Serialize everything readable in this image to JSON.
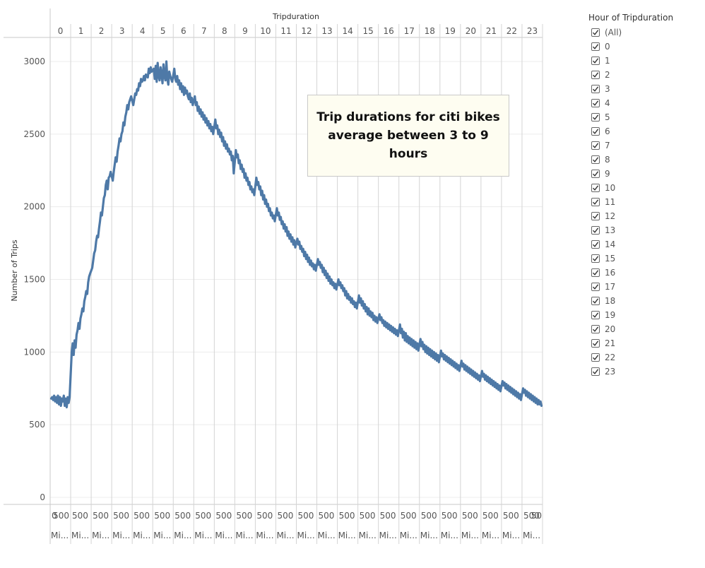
{
  "chart_data": {
    "type": "line",
    "title": "",
    "top_axis_title": "Tripduration",
    "ylabel": "Number of Trips",
    "ylim": [
      0,
      3000
    ],
    "yticks": [
      0,
      500,
      1000,
      1500,
      2000,
      2500,
      3000
    ],
    "grid": true,
    "line_color": "#4e79a7",
    "panels": [
      "0",
      "1",
      "2",
      "3",
      "4",
      "5",
      "6",
      "7",
      "8",
      "9",
      "10",
      "11",
      "12",
      "13",
      "14",
      "15",
      "16",
      "17",
      "18",
      "19",
      "20",
      "21",
      "22",
      "23"
    ],
    "bottom_tick_label": "500",
    "first_bottom_tick_label": "0",
    "last_bottom_tick_label": "50",
    "bottom_row_label": "Mi...",
    "series": [
      {
        "panel_values": [
          [
            680,
            690,
            670,
            700,
            660,
            690,
            650,
            700,
            640,
            690,
            630,
            680,
            660,
            700,
            630,
            680,
            620,
            690,
            650,
            690
          ],
          [
            1000,
            1060,
            980,
            1080,
            1030,
            1120,
            1150,
            1200,
            1160,
            1230,
            1260,
            1300,
            1280,
            1350,
            1380,
            1420,
            1400,
            1480,
            1520,
            1540
          ],
          [
            1580,
            1630,
            1680,
            1700,
            1760,
            1800,
            1790,
            1850,
            1900,
            1960,
            1940,
            2000,
            2060,
            2080,
            2150,
            2180,
            2120,
            2200,
            2210,
            2240
          ],
          [
            2180,
            2240,
            2290,
            2340,
            2310,
            2380,
            2420,
            2470,
            2450,
            2500,
            2520,
            2580,
            2560,
            2620,
            2650,
            2700,
            2670,
            2720,
            2740,
            2760
          ],
          [
            2700,
            2740,
            2780,
            2770,
            2810,
            2800,
            2850,
            2830,
            2880,
            2860,
            2870,
            2900,
            2870,
            2910,
            2900,
            2890,
            2950,
            2920,
            2960,
            2930
          ],
          [
            2950,
            2880,
            2970,
            2860,
            2990,
            2900,
            2870,
            2960,
            2910,
            2850,
            2980,
            2900,
            2870,
            3000,
            2880,
            2840,
            2930,
            2900,
            2880,
            2860
          ],
          [
            2950,
            2880,
            2860,
            2900,
            2840,
            2870,
            2810,
            2850,
            2790,
            2830,
            2770,
            2820,
            2780,
            2800,
            2760,
            2740,
            2780,
            2720,
            2750,
            2700
          ],
          [
            2760,
            2700,
            2720,
            2660,
            2690,
            2640,
            2670,
            2620,
            2650,
            2600,
            2630,
            2580,
            2610,
            2560,
            2590,
            2540,
            2570,
            2520,
            2550,
            2500
          ],
          [
            2600,
            2540,
            2560,
            2500,
            2530,
            2480,
            2510,
            2450,
            2480,
            2420,
            2450,
            2400,
            2430,
            2380,
            2400,
            2360,
            2380,
            2320,
            2350,
            2230
          ],
          [
            2390,
            2340,
            2360,
            2300,
            2320,
            2260,
            2290,
            2240,
            2260,
            2200,
            2230,
            2180,
            2200,
            2150,
            2170,
            2120,
            2140,
            2100,
            2120,
            2080
          ],
          [
            2200,
            2150,
            2170,
            2120,
            2140,
            2080,
            2110,
            2050,
            2080,
            2020,
            2050,
            2000,
            2020,
            1970,
            1990,
            1940,
            1960,
            1920,
            1940,
            1900
          ],
          [
            1990,
            1940,
            1960,
            1910,
            1930,
            1880,
            1900,
            1850,
            1880,
            1830,
            1860,
            1800,
            1830,
            1780,
            1810,
            1760,
            1790,
            1740,
            1770,
            1720
          ],
          [
            1780,
            1740,
            1760,
            1710,
            1730,
            1690,
            1710,
            1660,
            1690,
            1640,
            1670,
            1620,
            1650,
            1600,
            1630,
            1590,
            1610,
            1570,
            1600,
            1560
          ],
          [
            1640,
            1600,
            1620,
            1580,
            1600,
            1550,
            1580,
            1530,
            1560,
            1510,
            1540,
            1490,
            1520,
            1470,
            1500,
            1460,
            1480,
            1440,
            1470,
            1430
          ],
          [
            1500,
            1460,
            1480,
            1440,
            1460,
            1420,
            1440,
            1390,
            1420,
            1370,
            1400,
            1360,
            1380,
            1340,
            1370,
            1330,
            1350,
            1310,
            1340,
            1300
          ],
          [
            1390,
            1340,
            1370,
            1320,
            1350,
            1300,
            1330,
            1280,
            1310,
            1260,
            1300,
            1250,
            1280,
            1240,
            1270,
            1220,
            1250,
            1210,
            1240,
            1200
          ],
          [
            1260,
            1220,
            1240,
            1200,
            1220,
            1180,
            1210,
            1170,
            1200,
            1160,
            1190,
            1150,
            1180,
            1140,
            1170,
            1130,
            1160,
            1120,
            1150,
            1110
          ],
          [
            1190,
            1130,
            1160,
            1100,
            1140,
            1080,
            1130,
            1070,
            1110,
            1060,
            1100,
            1050,
            1090,
            1040,
            1080,
            1030,
            1070,
            1020,
            1060,
            1010
          ],
          [
            1090,
            1040,
            1070,
            1020,
            1050,
            1000,
            1040,
            990,
            1030,
            980,
            1020,
            970,
            1010,
            960,
            1000,
            950,
            990,
            940,
            980,
            930
          ],
          [
            1010,
            970,
            990,
            950,
            980,
            940,
            970,
            930,
            960,
            920,
            950,
            910,
            940,
            900,
            930,
            890,
            920,
            880,
            910,
            870
          ],
          [
            940,
            900,
            920,
            880,
            910,
            870,
            900,
            860,
            890,
            850,
            880,
            840,
            870,
            830,
            860,
            820,
            850,
            810,
            840,
            800
          ],
          [
            870,
            830,
            850,
            810,
            840,
            800,
            830,
            790,
            820,
            780,
            810,
            770,
            800,
            760,
            790,
            750,
            780,
            740,
            770,
            730
          ],
          [
            800,
            770,
            790,
            750,
            780,
            740,
            770,
            730,
            760,
            720,
            750,
            710,
            740,
            700,
            730,
            690,
            720,
            680,
            710,
            670
          ],
          [
            750,
            720,
            740,
            700,
            730,
            690,
            720,
            680,
            710,
            670,
            700,
            660,
            690,
            650,
            680,
            640,
            670,
            640,
            660,
            630
          ]
        ]
      }
    ]
  },
  "annotation": {
    "text": "Trip durations for citi bikes\naverage between 3 to 9 hours"
  },
  "legend": {
    "title": "Hour of Tripduration",
    "items": [
      "(All)",
      "0",
      "1",
      "2",
      "3",
      "4",
      "5",
      "6",
      "7",
      "8",
      "9",
      "10",
      "11",
      "12",
      "13",
      "14",
      "15",
      "16",
      "17",
      "18",
      "19",
      "20",
      "21",
      "22",
      "23"
    ]
  }
}
